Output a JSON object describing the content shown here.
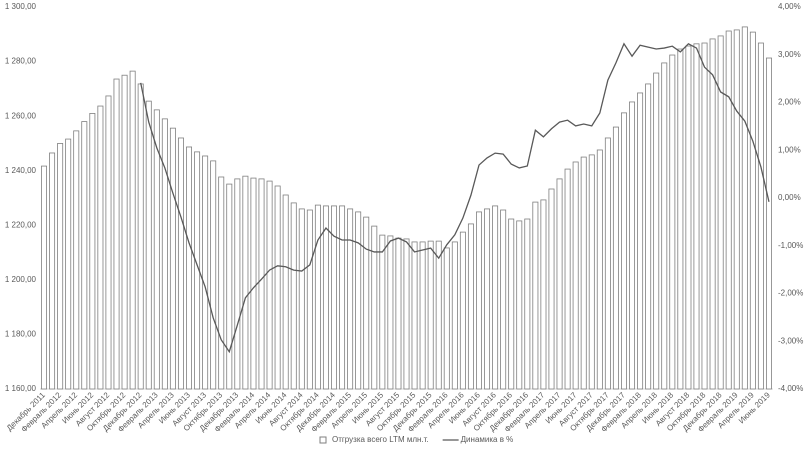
{
  "chart_data": {
    "type": "combo",
    "categories": [
      "Декабрь 2011",
      null,
      "Февраль 2012",
      null,
      "Апрель 2012",
      null,
      "Июнь 2012",
      null,
      "Август 2012",
      null,
      "Октябрь 2012",
      null,
      "Декабрь 2012",
      null,
      "Февраль 2013",
      null,
      "Апрель 2013",
      null,
      "Июнь 2013",
      null,
      "Август 2013",
      null,
      "Октябрь 2013",
      null,
      "Декабрь 2013",
      null,
      "Февраль 2014",
      null,
      "Апрель 2014",
      null,
      "Июнь 2014",
      null,
      "Август 2014",
      null,
      "Октябрь 2014",
      null,
      "Декабрь 2014",
      null,
      "Февраль 2015",
      null,
      "Апрель 2015",
      null,
      "Июнь 2015",
      null,
      "Август 2015",
      null,
      "Октябрь 2015",
      null,
      "Декабрь 2015",
      null,
      "Февраль 2016",
      null,
      "Апрель 2016",
      null,
      "Июнь 2016",
      null,
      "Август 2016",
      null,
      "Октябрь 2016",
      null,
      "Декабрь 2016",
      null,
      "Февраль 2017",
      null,
      "Апрель 2017",
      null,
      "Июнь 2017",
      null,
      "Август 2017",
      null,
      "Октябрь 2017",
      null,
      "Декабрь 2017",
      null,
      "Февраль 2018",
      null,
      "Апрель 2018",
      null,
      "Июнь 2018",
      null,
      "Август 2018",
      null,
      "Октябрь 2018",
      null,
      "Декабрь 2018",
      null,
      "Февраль 2019",
      null,
      "Апрель 2019",
      null,
      "Июнь 2019"
    ],
    "series": [
      {
        "name": "Отгрузка всего LTM млн.т.",
        "type": "bar",
        "color": "#7f7f7f",
        "values": [
          1241.7,
          1246.5,
          1250,
          1251.6,
          1254.6,
          1258,
          1261,
          1263.7,
          1267.4,
          1273.6,
          1275,
          1276.5,
          1271.8,
          1265.5,
          1262.3,
          1259,
          1255.6,
          1252,
          1248.7,
          1246.9,
          1245.4,
          1243.6,
          1237.7,
          1235.1,
          1237,
          1238,
          1237.3,
          1237,
          1236.2,
          1234.4,
          1231.1,
          1228.2,
          1226,
          1225.6,
          1227.4,
          1227.1,
          1227.1,
          1227.1,
          1226,
          1224.9,
          1223,
          1219.7,
          1216.4,
          1216.1,
          1215.3,
          1215,
          1213.9,
          1213.9,
          1214.2,
          1214.2,
          1211.7,
          1213.9,
          1217.5,
          1220.5,
          1224.9,
          1226,
          1227.1,
          1225.6,
          1222.3,
          1221.6,
          1222.3,
          1228.5,
          1229.3,
          1233.3,
          1237,
          1240.6,
          1243.2,
          1245,
          1245.8,
          1247.6,
          1252,
          1256,
          1261.2,
          1265.2,
          1268.5,
          1271.8,
          1275.8,
          1279.5,
          1282.4,
          1284.6,
          1285.7,
          1286.5,
          1286.8,
          1288.3,
          1289.4,
          1291.2,
          1291.6,
          1292.7,
          1290.8,
          1286.8,
          1281.3
        ]
      },
      {
        "name": "Динамика в %",
        "type": "line",
        "axis": "y2",
        "color": "#595959",
        "values": [
          null,
          null,
          null,
          null,
          null,
          null,
          null,
          null,
          null,
          null,
          null,
          null,
          2.41,
          1.59,
          1.05,
          0.63,
          0.1,
          -0.4,
          -0.94,
          -1.4,
          -1.86,
          -2.51,
          -2.97,
          -3.22,
          -2.66,
          -2.09,
          -1.88,
          -1.7,
          -1.51,
          -1.42,
          -1.44,
          -1.51,
          -1.53,
          -1.4,
          -0.88,
          -0.63,
          -0.8,
          -0.88,
          -0.88,
          -0.94,
          -1.07,
          -1.13,
          -1.13,
          -0.9,
          -0.84,
          -0.92,
          -1.13,
          -1.09,
          -1.05,
          -1.26,
          -0.98,
          -0.77,
          -0.42,
          0.06,
          0.69,
          0.84,
          0.94,
          0.92,
          0.71,
          0.63,
          0.67,
          1.42,
          1.28,
          1.45,
          1.59,
          1.63,
          1.51,
          1.55,
          1.51,
          1.78,
          2.47,
          2.83,
          3.23,
          2.97,
          3.2,
          3.16,
          3.12,
          3.14,
          3.18,
          3.06,
          3.23,
          3.14,
          2.74,
          2.58,
          2.22,
          2.12,
          1.82,
          1.61,
          1.19,
          0.65,
          -0.08
        ]
      }
    ],
    "ylim": [
      1160,
      1300
    ],
    "yticks": [
      {
        "value": 1160,
        "label": "1 160,00"
      },
      {
        "value": 1180,
        "label": "1 180,00"
      },
      {
        "value": 1200,
        "label": "1 200,00"
      },
      {
        "value": 1220,
        "label": "1 220,00"
      },
      {
        "value": 1240,
        "label": "1 240,00"
      },
      {
        "value": 1260,
        "label": "1 260,00"
      },
      {
        "value": 1280,
        "label": "1 280,00"
      },
      {
        "value": 1300,
        "label": "1 300,00"
      }
    ],
    "y2lim": [
      -4,
      4
    ],
    "y2ticks": [
      {
        "value": -4,
        "label": "-4,00%"
      },
      {
        "value": -3,
        "label": "-3,00%"
      },
      {
        "value": -2,
        "label": "-2,00%"
      },
      {
        "value": -1,
        "label": "-1,00%"
      },
      {
        "value": 0,
        "label": "0,00%"
      },
      {
        "value": 1,
        "label": "1,00%"
      },
      {
        "value": 2,
        "label": "2,00%"
      },
      {
        "value": 3,
        "label": "3,00%"
      },
      {
        "value": 4,
        "label": "4,00%"
      }
    ],
    "grid": false,
    "legend": "bottom"
  }
}
